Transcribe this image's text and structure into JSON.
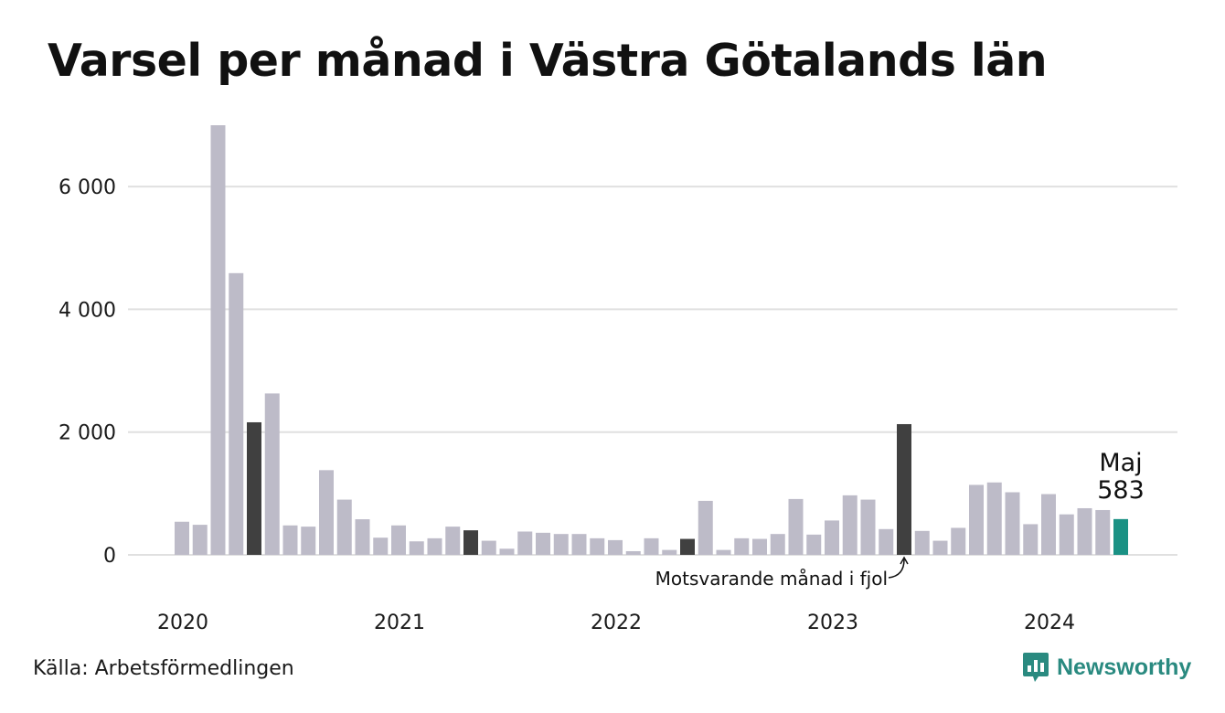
{
  "header": {
    "title": "Varsel per månad i Västra Götalands län"
  },
  "footer": {
    "source": "Källa: Arbetsförmedlingen",
    "brand": "Newsworthy"
  },
  "colors": {
    "bar_default": "#bdbbc8",
    "bar_same_month": "#404040",
    "bar_current": "#1a9184",
    "gridline": "#e0e0e0",
    "brand": "#2a8a80"
  },
  "chart_data": {
    "type": "bar",
    "title": "Varsel per månad i Västra Götalands län",
    "xlabel": "",
    "ylabel": "",
    "ylim": [
      0,
      7000
    ],
    "y_ticks": [
      0,
      2000,
      4000,
      6000
    ],
    "y_tick_labels": [
      "0",
      "2 000",
      "4 000",
      "6 000"
    ],
    "x_tick_labels": [
      "2020",
      "2021",
      "2022",
      "2023",
      "2024"
    ],
    "grid": true,
    "start_month": "2020-01",
    "values": [
      540,
      490,
      7000,
      4590,
      2160,
      2630,
      480,
      460,
      1380,
      900,
      580,
      280,
      480,
      220,
      270,
      460,
      400,
      230,
      100,
      380,
      360,
      340,
      340,
      270,
      240,
      60,
      270,
      80,
      260,
      880,
      80,
      270,
      260,
      340,
      910,
      330,
      560,
      970,
      900,
      420,
      2130,
      390,
      230,
      440,
      1140,
      1180,
      1020,
      500,
      990,
      660,
      760,
      730,
      583
    ],
    "highlight_same_month_indices": [
      4,
      16,
      28,
      40
    ],
    "current_index": 52,
    "annotations": {
      "current_month_label": "Maj",
      "current_value_label": "583",
      "same_month_note": "Motsvarande månad i fjol"
    }
  }
}
